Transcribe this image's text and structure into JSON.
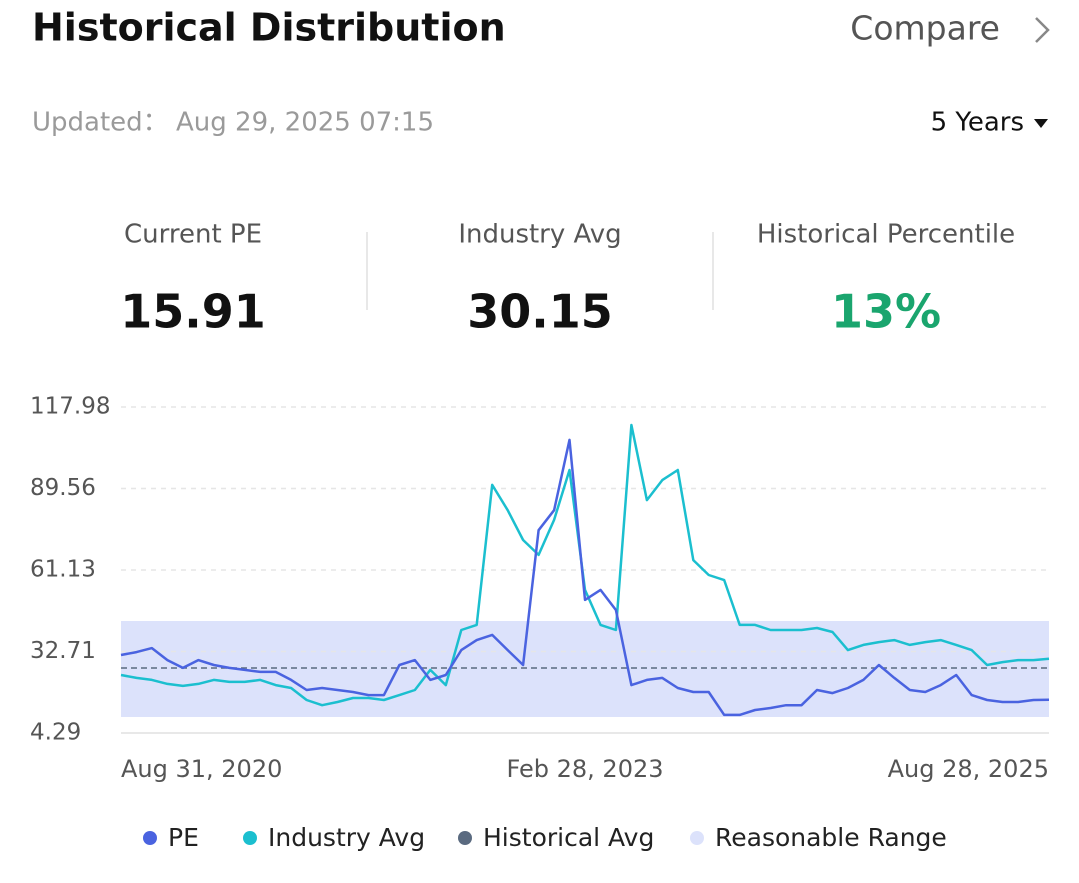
{
  "header": {
    "title": "Historical Distribution",
    "compare": "Compare"
  },
  "updated": {
    "label": "Updated：",
    "value": "Aug 29, 2025 07:15"
  },
  "period": "5 Years",
  "stats": [
    {
      "label": "Current PE",
      "value": "15.91"
    },
    {
      "label": "Industry Avg",
      "value": "30.15"
    },
    {
      "label": "Historical Percentile",
      "value": "13%"
    }
  ],
  "chart_data": {
    "type": "line",
    "categories": [
      "Aug 31, 2020",
      null,
      null,
      null,
      null,
      null,
      null,
      null,
      null,
      null,
      null,
      null,
      null,
      null,
      null,
      null,
      null,
      null,
      null,
      null,
      null,
      null,
      null,
      null,
      null,
      null,
      null,
      null,
      null,
      null,
      "Feb 28, 2023",
      null,
      null,
      null,
      null,
      null,
      null,
      null,
      null,
      null,
      null,
      null,
      null,
      null,
      null,
      null,
      null,
      null,
      null,
      null,
      null,
      null,
      null,
      null,
      null,
      null,
      null,
      null,
      null,
      null,
      "Aug 28, 2025"
    ],
    "series": [
      {
        "name": "PE",
        "color": "#4a63e0",
        "values": [
          31.5,
          32.5,
          33.9,
          29.7,
          27,
          29.7,
          28,
          27,
          26.3,
          25.6,
          25.6,
          22.8,
          19.3,
          20,
          19.3,
          18.6,
          17.5,
          17.5,
          28,
          29.7,
          22.8,
          24.5,
          33.2,
          36.7,
          38.5,
          33.2,
          28,
          75,
          82,
          106.5,
          50.7,
          54.2,
          47.2,
          21,
          22.8,
          23.5,
          20,
          18.6,
          18.6,
          10.6,
          10.6,
          12.3,
          13,
          14,
          14,
          19.3,
          18.2,
          20,
          22.8,
          28,
          23.5,
          19.3,
          18.6,
          21,
          24.5,
          17.5,
          15.8,
          15.1,
          15.1,
          15.8,
          15.91
        ]
      },
      {
        "name": "Industry Avg",
        "color": "#1bbfcf",
        "values": [
          24.5,
          23.5,
          22.8,
          21.4,
          20.7,
          21.4,
          22.8,
          22.1,
          22.1,
          22.8,
          21,
          20,
          15.8,
          14,
          15.1,
          16.5,
          16.5,
          15.8,
          17.5,
          19.3,
          26.3,
          21,
          40.2,
          42,
          90.8,
          82,
          71.6,
          66.4,
          78.6,
          96,
          54.2,
          42,
          40.2,
          111.7,
          85.5,
          92.5,
          96,
          64.6,
          59.4,
          57.6,
          42,
          42,
          40.2,
          40.2,
          40.2,
          40.9,
          39.5,
          33.2,
          35,
          36,
          36.7,
          35,
          36,
          36.7,
          35,
          33.2,
          28,
          29,
          29.7,
          29.7,
          30.15
        ]
      }
    ],
    "historical_avg": {
      "name": "Historical Avg",
      "color": "#5a6a80",
      "value": 26.96
    },
    "reasonable_range": {
      "name": "Reasonable Range",
      "color": "#dce2fb",
      "low": 9.87,
      "high": 43.35
    },
    "ylim": [
      4.29,
      117.98
    ],
    "yticks": [
      4.29,
      32.71,
      61.13,
      89.56,
      117.98
    ],
    "grid": true
  }
}
